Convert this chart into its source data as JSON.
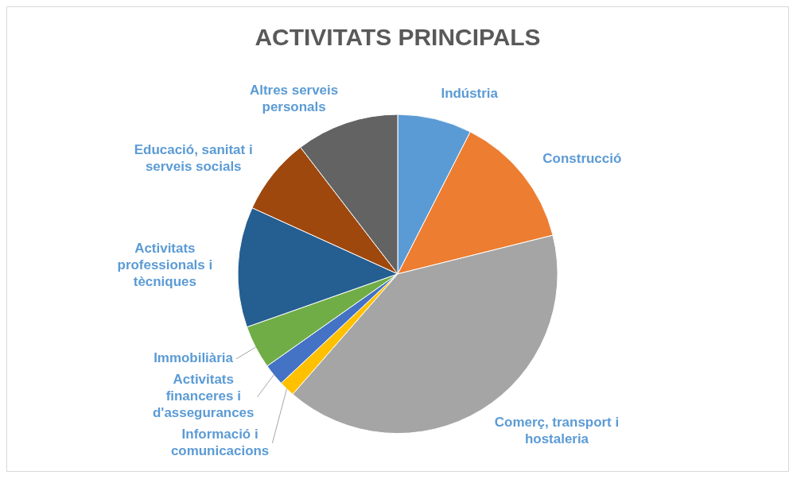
{
  "chart_data": {
    "type": "pie",
    "title": "ACTIVITATS PRINCIPALS",
    "categories": [
      "Indústria",
      "Construcció",
      "Comerç, transport i hostaleria",
      "Informació i comunicacions",
      "Activitats financeres i d'assegurances",
      "Immobiliària",
      "Activitats professionals i tècniques",
      "Educació, sanitat i serveis socials",
      "Altres serveis personals"
    ],
    "values": [
      7.5,
      13.6,
      40.3,
      1.6,
      2.2,
      4.4,
      12.2,
      7.8,
      10.4
    ],
    "colors": [
      "#5b9bd5",
      "#ed7d31",
      "#a5a5a5",
      "#ffc000",
      "#4472c4",
      "#70ad47",
      "#255e91",
      "#9e480e",
      "#636363"
    ],
    "legend": false
  }
}
